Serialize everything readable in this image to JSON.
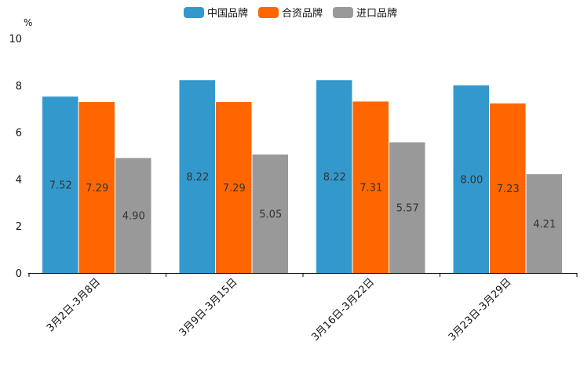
{
  "chart_data": {
    "type": "bar",
    "title": "",
    "ylabel": "%",
    "xlabel": "",
    "ylim": [
      0,
      10
    ],
    "yticks": [
      0,
      2,
      4,
      6,
      8,
      10
    ],
    "categories": [
      "3月2日-3月8日",
      "3月9日-3月15日",
      "3月16日-3月22日",
      "3月23日-3月29日"
    ],
    "series": [
      {
        "name": "中国品牌",
        "color": "#3399cc",
        "values": [
          7.52,
          8.22,
          8.22,
          8.0
        ],
        "labels": [
          "7.52",
          "8.22",
          "8.22",
          "8.00"
        ]
      },
      {
        "name": "合资品牌",
        "color": "#ff6600",
        "values": [
          7.29,
          7.29,
          7.31,
          7.23
        ],
        "labels": [
          "7.29",
          "7.29",
          "7.31",
          "7.23"
        ]
      },
      {
        "name": "进口品牌",
        "color": "#999999",
        "values": [
          4.9,
          5.05,
          5.57,
          4.21
        ],
        "labels": [
          "4.90",
          "5.05",
          "5.57",
          "4.21"
        ]
      }
    ],
    "legend_position": "top-center",
    "grid": false
  }
}
